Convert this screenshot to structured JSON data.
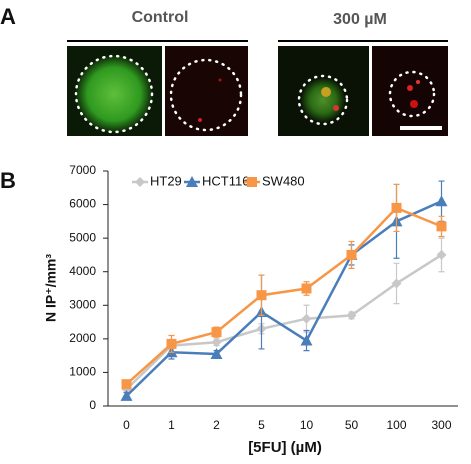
{
  "panel_a": {
    "label": "A",
    "conditions": [
      "Control",
      "300 µM"
    ]
  },
  "panel_b": {
    "label": "B"
  },
  "chart_data": {
    "type": "line",
    "ylabel": "N IP⁺/mm³",
    "xlabel": "[5FU] (µM)",
    "categories": [
      "0",
      "1",
      "2",
      "5",
      "10",
      "50",
      "100",
      "300"
    ],
    "ylim": [
      0,
      7000
    ],
    "yticks": [
      0,
      1000,
      2000,
      3000,
      4000,
      5000,
      6000,
      7000
    ],
    "legend": "top-left",
    "series": [
      {
        "name": "HT29",
        "color": "#c8c8c8",
        "marker": "diamond",
        "values": [
          500,
          1800,
          1900,
          2300,
          2600,
          2700,
          3650,
          4500
        ],
        "errors": [
          100,
          100,
          100,
          150,
          400,
          100,
          600,
          500
        ]
      },
      {
        "name": "HCT116",
        "color": "#4a7ebb",
        "marker": "triangle",
        "values": [
          300,
          1600,
          1550,
          2800,
          1950,
          4500,
          5500,
          6100
        ],
        "errors": [
          100,
          200,
          100,
          1100,
          300,
          300,
          1100,
          600
        ]
      },
      {
        "name": "SW480",
        "color": "#f79646",
        "marker": "square",
        "values": [
          650,
          1850,
          2200,
          3300,
          3500,
          4500,
          5900,
          5350
        ],
        "errors": [
          100,
          250,
          150,
          600,
          200,
          400,
          700,
          300
        ]
      }
    ]
  }
}
